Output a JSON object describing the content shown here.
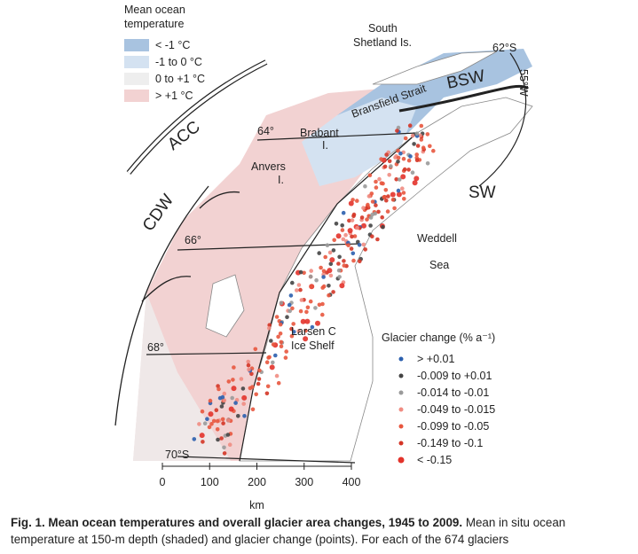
{
  "legend_ocean": {
    "title_lines": [
      "Mean ocean",
      "temperature"
    ],
    "items": [
      {
        "label": "< -1 °C",
        "color": "#a8c3e0"
      },
      {
        "label": "-1 to 0 °C",
        "color": "#d4e2f1"
      },
      {
        "label": "0 to +1 °C",
        "color": "#eeeeee"
      },
      {
        "label": "> +1 °C",
        "color": "#f2d2d2"
      }
    ]
  },
  "labels": {
    "south_shetland": [
      "South",
      "Shetland Is."
    ],
    "lat62": "62°S",
    "lon55": "55°W",
    "bsw": "BSW",
    "bransfield": "Bransfield Strait",
    "acc": "ACC",
    "lat64": "64°",
    "brabant": [
      "Brabant",
      "I."
    ],
    "anvers": [
      "Anvers",
      "I."
    ],
    "cdw": "CDW",
    "sw": "SW",
    "weddell": [
      "Weddell",
      "Sea"
    ],
    "lat66": "66°",
    "larsen": [
      "Larsen C",
      "Ice Shelf"
    ],
    "lat68": "68°",
    "lat70": "70°S"
  },
  "legend_glacier": {
    "title": "Glacier change (% a⁻¹)",
    "items": [
      {
        "label": "> +0.01",
        "color": "#2b5fae"
      },
      {
        "label": "-0.009 to +0.01",
        "color": "#444444"
      },
      {
        "label": "-0.014 to -0.01",
        "color": "#9a9a9a"
      },
      {
        "label": "-0.049 to -0.015",
        "color": "#f08c82"
      },
      {
        "label": "-0.099 to -0.05",
        "color": "#e8563e"
      },
      {
        "label": "-0.149 to -0.1",
        "color": "#d43526"
      },
      {
        "label": "< -0.15",
        "color": "#e3332b"
      }
    ]
  },
  "scale": {
    "ticks": [
      0,
      100,
      200,
      300,
      400
    ],
    "unit": "km"
  },
  "caption": {
    "bold": "Fig. 1. Mean ocean temperatures and overall glacier area changes, 1945 to 2009.",
    "text": "Mean in situ ocean temperature at 150-m depth (shaded) and glacier change (points). For each of the 674 glaciers"
  }
}
